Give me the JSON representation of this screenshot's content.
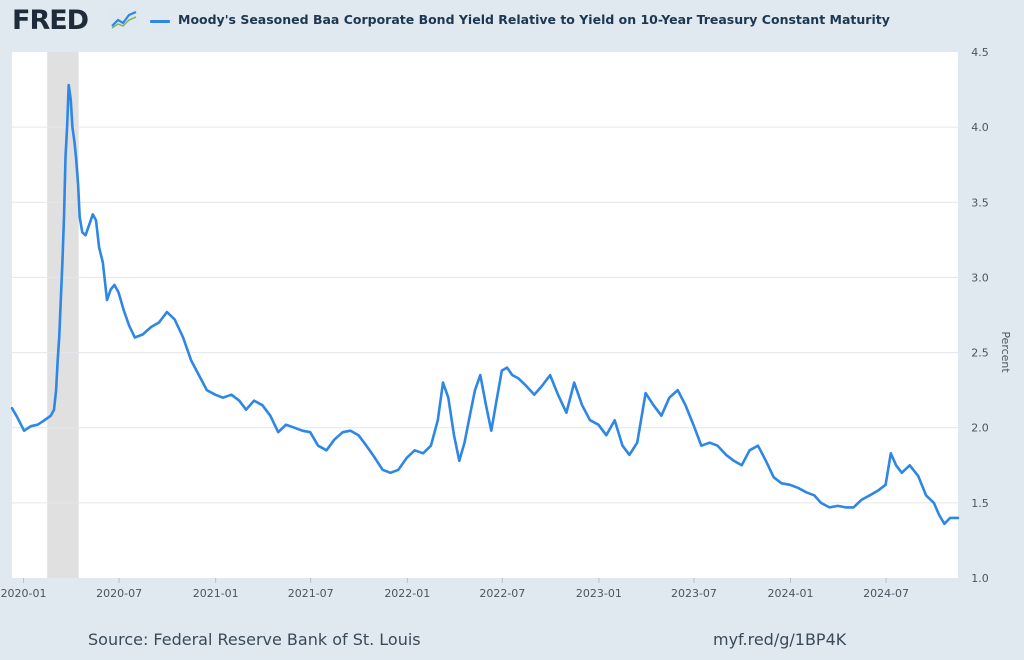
{
  "header": {
    "logo_text": "FRED",
    "logo_icon": "fred-chart-icon"
  },
  "footer": {
    "source": "Source: Federal Reserve Bank of St. Louis",
    "link": "myf.red/g/1BP4K"
  },
  "colors": {
    "series": "#2e86e5",
    "recession": "#e0e0e0",
    "grid": "#e3e7eb",
    "background": "#e1e9f0",
    "plot_background": "#ffffff"
  },
  "chart_data": {
    "type": "line",
    "title": "",
    "xlabel": "",
    "ylabel": "Percent",
    "x_range": [
      "2019-12-10",
      "2024-11-15"
    ],
    "ylim": [
      1.0,
      4.5
    ],
    "y_ticks": [
      1.0,
      1.5,
      2.0,
      2.5,
      3.0,
      3.5,
      4.0,
      4.5
    ],
    "x_ticks": [
      "2020-01",
      "2020-07",
      "2021-01",
      "2021-07",
      "2022-01",
      "2022-07",
      "2023-01",
      "2023-07",
      "2024-01",
      "2024-07"
    ],
    "grid": true,
    "legend_position": "top-left",
    "recession": [
      [
        "2020-02-15",
        "2020-04-15"
      ]
    ],
    "series": [
      {
        "name": "Moody's Seasoned Baa Corporate Bond Yield Relative to Yield on 10-Year Treasury Constant Maturity",
        "points": [
          [
            "2019-12-10",
            2.13
          ],
          [
            "2019-12-20",
            2.07
          ],
          [
            "2020-01-02",
            1.98
          ],
          [
            "2020-01-15",
            2.01
          ],
          [
            "2020-01-28",
            2.02
          ],
          [
            "2020-02-10",
            2.05
          ],
          [
            "2020-02-22",
            2.08
          ],
          [
            "2020-02-28",
            2.12
          ],
          [
            "2020-03-03",
            2.25
          ],
          [
            "2020-03-06",
            2.45
          ],
          [
            "2020-03-09",
            2.6
          ],
          [
            "2020-03-12",
            2.85
          ],
          [
            "2020-03-15",
            3.1
          ],
          [
            "2020-03-18",
            3.4
          ],
          [
            "2020-03-21",
            3.8
          ],
          [
            "2020-03-24",
            4.0
          ],
          [
            "2020-03-27",
            4.28
          ],
          [
            "2020-03-31",
            4.18
          ],
          [
            "2020-04-03",
            4.0
          ],
          [
            "2020-04-07",
            3.9
          ],
          [
            "2020-04-10",
            3.8
          ],
          [
            "2020-04-14",
            3.62
          ],
          [
            "2020-04-17",
            3.4
          ],
          [
            "2020-04-22",
            3.3
          ],
          [
            "2020-04-28",
            3.28
          ],
          [
            "2020-05-05",
            3.35
          ],
          [
            "2020-05-12",
            3.42
          ],
          [
            "2020-05-18",
            3.38
          ],
          [
            "2020-05-24",
            3.2
          ],
          [
            "2020-05-31",
            3.1
          ],
          [
            "2020-06-08",
            2.85
          ],
          [
            "2020-06-15",
            2.92
          ],
          [
            "2020-06-22",
            2.95
          ],
          [
            "2020-06-30",
            2.9
          ],
          [
            "2020-07-10",
            2.78
          ],
          [
            "2020-07-20",
            2.68
          ],
          [
            "2020-07-31",
            2.6
          ],
          [
            "2020-08-15",
            2.62
          ],
          [
            "2020-08-31",
            2.67
          ],
          [
            "2020-09-15",
            2.7
          ],
          [
            "2020-09-30",
            2.77
          ],
          [
            "2020-10-15",
            2.72
          ],
          [
            "2020-10-31",
            2.6
          ],
          [
            "2020-11-15",
            2.45
          ],
          [
            "2020-11-30",
            2.35
          ],
          [
            "2020-12-15",
            2.25
          ],
          [
            "2020-12-31",
            2.22
          ],
          [
            "2021-01-15",
            2.2
          ],
          [
            "2021-01-31",
            2.22
          ],
          [
            "2021-02-15",
            2.18
          ],
          [
            "2021-02-28",
            2.12
          ],
          [
            "2021-03-15",
            2.18
          ],
          [
            "2021-03-31",
            2.15
          ],
          [
            "2021-04-15",
            2.08
          ],
          [
            "2021-04-30",
            1.97
          ],
          [
            "2021-05-15",
            2.02
          ],
          [
            "2021-05-31",
            2.0
          ],
          [
            "2021-06-15",
            1.98
          ],
          [
            "2021-06-30",
            1.97
          ],
          [
            "2021-07-15",
            1.88
          ],
          [
            "2021-07-31",
            1.85
          ],
          [
            "2021-08-15",
            1.92
          ],
          [
            "2021-08-31",
            1.97
          ],
          [
            "2021-09-15",
            1.98
          ],
          [
            "2021-09-30",
            1.95
          ],
          [
            "2021-10-15",
            1.88
          ],
          [
            "2021-10-31",
            1.8
          ],
          [
            "2021-11-15",
            1.72
          ],
          [
            "2021-11-30",
            1.7
          ],
          [
            "2021-12-15",
            1.72
          ],
          [
            "2021-12-31",
            1.8
          ],
          [
            "2022-01-15",
            1.85
          ],
          [
            "2022-01-31",
            1.83
          ],
          [
            "2022-02-15",
            1.88
          ],
          [
            "2022-02-28",
            2.05
          ],
          [
            "2022-03-10",
            2.3
          ],
          [
            "2022-03-20",
            2.2
          ],
          [
            "2022-03-31",
            1.95
          ],
          [
            "2022-04-10",
            1.78
          ],
          [
            "2022-04-20",
            1.9
          ],
          [
            "2022-04-30",
            2.08
          ],
          [
            "2022-05-10",
            2.25
          ],
          [
            "2022-05-20",
            2.35
          ],
          [
            "2022-05-31",
            2.15
          ],
          [
            "2022-06-10",
            1.98
          ],
          [
            "2022-06-20",
            2.18
          ],
          [
            "2022-06-30",
            2.38
          ],
          [
            "2022-07-10",
            2.4
          ],
          [
            "2022-07-20",
            2.35
          ],
          [
            "2022-07-31",
            2.33
          ],
          [
            "2022-08-15",
            2.28
          ],
          [
            "2022-08-31",
            2.22
          ],
          [
            "2022-09-15",
            2.28
          ],
          [
            "2022-09-30",
            2.35
          ],
          [
            "2022-10-15",
            2.22
          ],
          [
            "2022-10-31",
            2.1
          ],
          [
            "2022-11-15",
            2.3
          ],
          [
            "2022-11-30",
            2.15
          ],
          [
            "2022-12-15",
            2.05
          ],
          [
            "2022-12-31",
            2.02
          ],
          [
            "2023-01-15",
            1.95
          ],
          [
            "2023-01-31",
            2.05
          ],
          [
            "2023-02-15",
            1.88
          ],
          [
            "2023-02-28",
            1.82
          ],
          [
            "2023-03-15",
            1.9
          ],
          [
            "2023-03-31",
            2.23
          ],
          [
            "2023-04-15",
            2.15
          ],
          [
            "2023-04-30",
            2.08
          ],
          [
            "2023-05-15",
            2.2
          ],
          [
            "2023-05-31",
            2.25
          ],
          [
            "2023-06-15",
            2.15
          ],
          [
            "2023-06-30",
            2.02
          ],
          [
            "2023-07-15",
            1.88
          ],
          [
            "2023-07-31",
            1.9
          ],
          [
            "2023-08-15",
            1.88
          ],
          [
            "2023-08-31",
            1.82
          ],
          [
            "2023-09-15",
            1.78
          ],
          [
            "2023-09-30",
            1.75
          ],
          [
            "2023-10-15",
            1.85
          ],
          [
            "2023-10-31",
            1.88
          ],
          [
            "2023-11-15",
            1.78
          ],
          [
            "2023-11-30",
            1.67
          ],
          [
            "2023-12-15",
            1.63
          ],
          [
            "2023-12-31",
            1.62
          ],
          [
            "2024-01-15",
            1.6
          ],
          [
            "2024-01-31",
            1.57
          ],
          [
            "2024-02-15",
            1.55
          ],
          [
            "2024-02-28",
            1.5
          ],
          [
            "2024-03-15",
            1.47
          ],
          [
            "2024-03-31",
            1.48
          ],
          [
            "2024-04-15",
            1.47
          ],
          [
            "2024-04-30",
            1.47
          ],
          [
            "2024-05-15",
            1.52
          ],
          [
            "2024-05-31",
            1.55
          ],
          [
            "2024-06-15",
            1.58
          ],
          [
            "2024-06-30",
            1.62
          ],
          [
            "2024-07-10",
            1.83
          ],
          [
            "2024-07-20",
            1.75
          ],
          [
            "2024-07-31",
            1.7
          ],
          [
            "2024-08-15",
            1.75
          ],
          [
            "2024-08-31",
            1.68
          ],
          [
            "2024-09-15",
            1.55
          ],
          [
            "2024-09-30",
            1.5
          ],
          [
            "2024-10-10",
            1.42
          ],
          [
            "2024-10-20",
            1.36
          ],
          [
            "2024-10-31",
            1.4
          ],
          [
            "2024-11-15",
            1.4
          ]
        ]
      }
    ]
  }
}
